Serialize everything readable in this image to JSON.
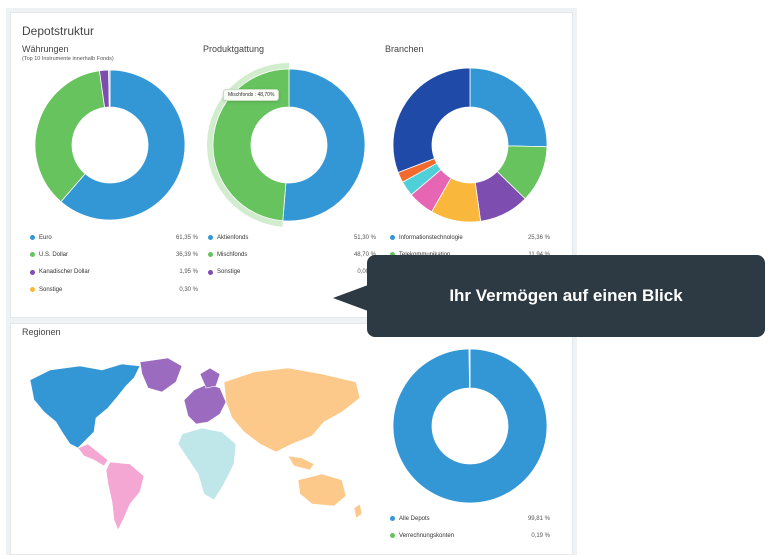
{
  "header": {
    "title": "Depotstruktur"
  },
  "currencies": {
    "title": "Währungen",
    "subtitle": "(Top 10 Instrumente innerhalb Fonds)",
    "items": [
      {
        "label": "Euro",
        "value": "61,35 %",
        "color": "#3397d6"
      },
      {
        "label": "U.S. Dollar",
        "value": "36,39 %",
        "color": "#66c35e"
      },
      {
        "label": "Kanadischer Dollar",
        "value": "1,95 %",
        "color": "#7e4db0"
      },
      {
        "label": "Sonstige",
        "value": "0,30 %",
        "color": "#f9b83b"
      }
    ]
  },
  "product_types": {
    "title": "Produktgattung",
    "tooltip": "Mischfonds : 48,70%",
    "items": [
      {
        "label": "Aktienfonds",
        "value": "51,30 %",
        "color": "#3397d6"
      },
      {
        "label": "Mischfonds",
        "value": "48,70 %",
        "color": "#66c35e"
      },
      {
        "label": "Sonstige",
        "value": "0,00 %",
        "color": "#7e4db0"
      }
    ]
  },
  "sectors": {
    "title": "Branchen",
    "items": [
      {
        "label": "Informationstechnologie",
        "value": "25,36 %",
        "color": "#3397d6"
      },
      {
        "label": "Telekommunikation",
        "value": "11,94 %",
        "color": "#66c35e"
      }
    ]
  },
  "regions": {
    "title": "Regionen"
  },
  "accounts": {
    "items": [
      {
        "label": "Alle Depots",
        "value": "99,81 %",
        "color": "#3397d6"
      },
      {
        "label": "Verrechnungskonten",
        "value": "0,19 %",
        "color": "#66c35e"
      }
    ]
  },
  "callout": {
    "text": "Ihr Vermögen auf einen Blick"
  },
  "chart_data": [
    {
      "type": "pie",
      "title": "Währungen",
      "categories": [
        "Euro",
        "U.S. Dollar",
        "Kanadischer Dollar",
        "Sonstige"
      ],
      "values": [
        61.35,
        36.39,
        1.95,
        0.3
      ],
      "colors": [
        "#3397d6",
        "#66c35e",
        "#7e4db0",
        "#f9b83b"
      ]
    },
    {
      "type": "pie",
      "title": "Produktgattung",
      "categories": [
        "Aktienfonds",
        "Mischfonds",
        "Sonstige"
      ],
      "values": [
        51.3,
        48.7,
        0.0
      ],
      "colors": [
        "#3397d6",
        "#66c35e",
        "#7e4db0"
      ]
    },
    {
      "type": "pie",
      "title": "Branchen",
      "categories": [
        "Informationstechnologie",
        "Telekommunikation",
        "",
        "",
        "",
        "",
        "",
        ""
      ],
      "values": [
        25.36,
        11.94,
        10.5,
        10.5,
        5.5,
        3.2,
        2.2,
        30.8
      ],
      "colors": [
        "#3397d6",
        "#66c35e",
        "#7e4db0",
        "#f9b83b",
        "#e766b3",
        "#4fd0d9",
        "#f26a2e",
        "#1f4aa8"
      ]
    },
    {
      "type": "pie",
      "title": "",
      "categories": [
        "Alle Depots",
        "Verrechnungskonten"
      ],
      "values": [
        99.81,
        0.19
      ],
      "colors": [
        "#3397d6",
        "#66c35e"
      ]
    }
  ]
}
